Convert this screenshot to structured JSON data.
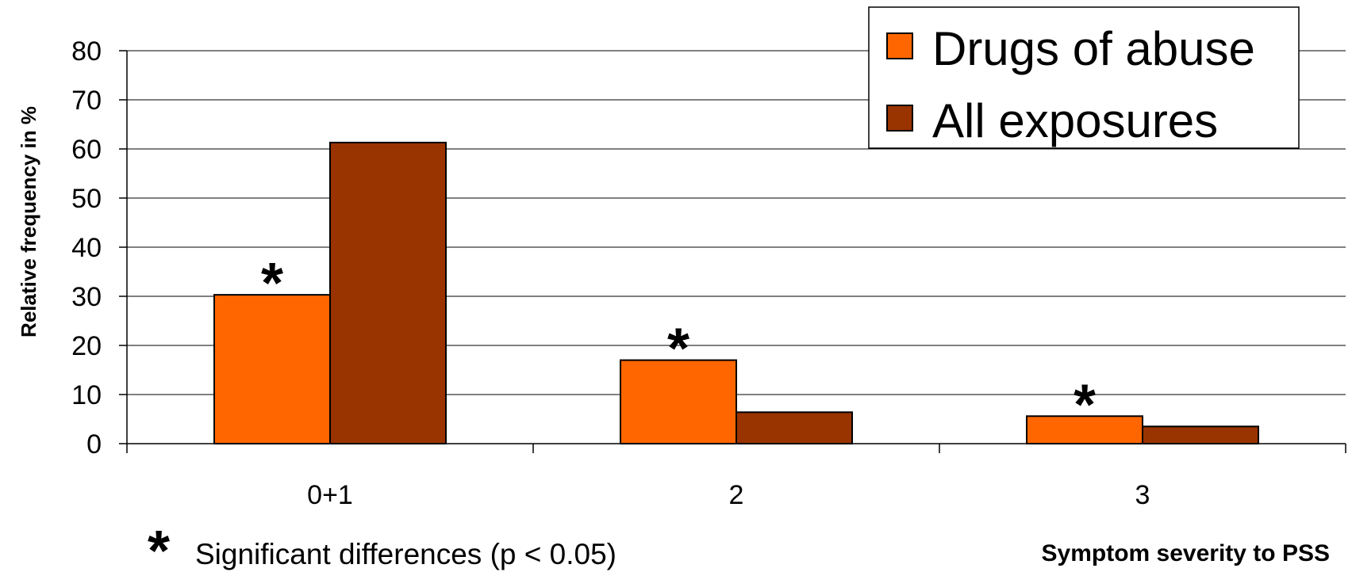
{
  "chart_data": {
    "type": "bar",
    "categories": [
      "0+1",
      "2",
      "3"
    ],
    "series": [
      {
        "name": "Drugs of abuse",
        "values": [
          30.3,
          17.0,
          5.6
        ],
        "color": "#ff6600"
      },
      {
        "name": "All exposures",
        "values": [
          61.3,
          6.4,
          3.5
        ],
        "color": "#993300"
      }
    ],
    "title": "",
    "xlabel": "Symptom severity to PSS",
    "ylabel": "Relative frequency in %",
    "ylim": [
      0,
      80
    ],
    "yticks": [
      "0",
      "10",
      "20",
      "30",
      "40",
      "50",
      "60",
      "70",
      "80"
    ],
    "grid": true,
    "legend": "top-right",
    "significance_markers": [
      "*",
      "*",
      "*"
    ],
    "footnote": {
      "symbol": "*",
      "text": "Significant differences (p < 0.05)"
    }
  }
}
